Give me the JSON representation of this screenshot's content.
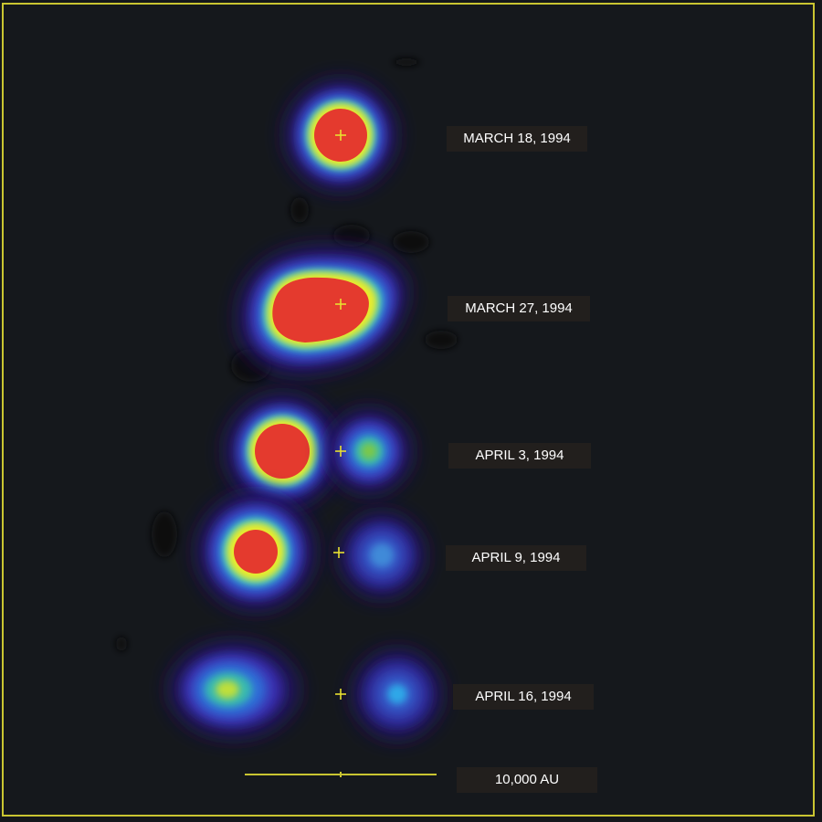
{
  "epochs": [
    {
      "date": "MARCH 18, 1994"
    },
    {
      "date": "MARCH 27, 1994"
    },
    {
      "date": "APRIL 3, 1994"
    },
    {
      "date": "APRIL 9, 1994"
    },
    {
      "date": "APRIL 16, 1994"
    }
  ],
  "scale_bar": {
    "label": "10,000 AU"
  },
  "colors": {
    "background": "#15181c",
    "frame": "#c9c531",
    "marker": "#e8e030",
    "label_bg": "#221f1d",
    "label_text": "#ffffff"
  },
  "color_scale": [
    "black",
    "indigo",
    "blue",
    "cyan",
    "green",
    "yellow",
    "red"
  ]
}
